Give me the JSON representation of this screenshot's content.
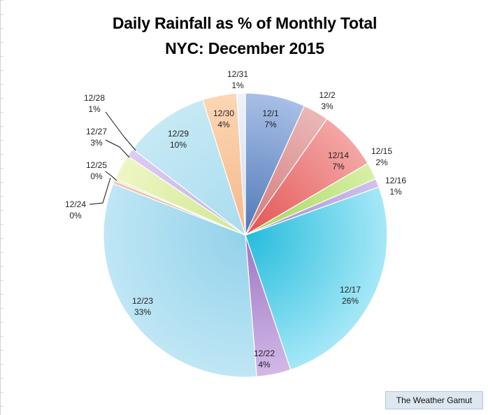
{
  "chart_data": {
    "type": "pie",
    "title": "Daily Rainfall as % of Monthly Total",
    "subtitle": "NYC: December 2015",
    "slices": [
      {
        "label": "12/1",
        "value": 7,
        "pct": "7%",
        "color": "#a8bfe6",
        "dark": "#4f78b7"
      },
      {
        "label": "12/2",
        "value": 3,
        "pct": "3%",
        "color": "#eab8b8",
        "dark": "#d47878"
      },
      {
        "label": "12/14",
        "value": 7,
        "pct": "7%",
        "color": "#f4a6a6",
        "dark": "#e35353"
      },
      {
        "label": "12/15",
        "value": 2,
        "pct": "2%",
        "color": "#d6f0a6",
        "dark": "#a6d45a"
      },
      {
        "label": "12/16",
        "value": 1,
        "pct": "1%",
        "color": "#d2c2ec",
        "dark": "#9f87d4"
      },
      {
        "label": "12/17",
        "value": 26,
        "pct": "26%",
        "color": "#a6e8f7",
        "dark": "#25bcdc"
      },
      {
        "label": "12/22",
        "value": 4,
        "pct": "4%",
        "color": "#d2b8e6",
        "dark": "#9d75c4"
      },
      {
        "label": "12/23",
        "value": 33,
        "pct": "33%",
        "color": "#bfe6f5",
        "dark": "#93d2ea"
      },
      {
        "label": "12/24",
        "value": 0.4,
        "pct": "0%",
        "color": "#f3c8b4",
        "dark": "#e3a68a"
      },
      {
        "label": "12/25",
        "value": 0.2,
        "pct": "0%",
        "color": "#dbe7c8",
        "dark": "#b9d39a"
      },
      {
        "label": "12/27",
        "value": 3,
        "pct": "3%",
        "color": "#eef7c4",
        "dark": "#cfe690"
      },
      {
        "label": "12/28",
        "value": 1,
        "pct": "1%",
        "color": "#dccdf2",
        "dark": "#c3aeea"
      },
      {
        "label": "12/29",
        "value": 10,
        "pct": "10%",
        "color": "#c6e9f4",
        "dark": "#a9dcef"
      },
      {
        "label": "12/30",
        "value": 4,
        "pct": "4%",
        "color": "#fdd6b4",
        "dark": "#f5b888"
      },
      {
        "label": "12/31",
        "value": 1,
        "pct": "1%",
        "color": "#eef3fb",
        "dark": "#cad8ef"
      }
    ],
    "start_angle_deg": 0,
    "direction": "clockwise",
    "legend": "none"
  },
  "credit": "The Weather Gamut"
}
